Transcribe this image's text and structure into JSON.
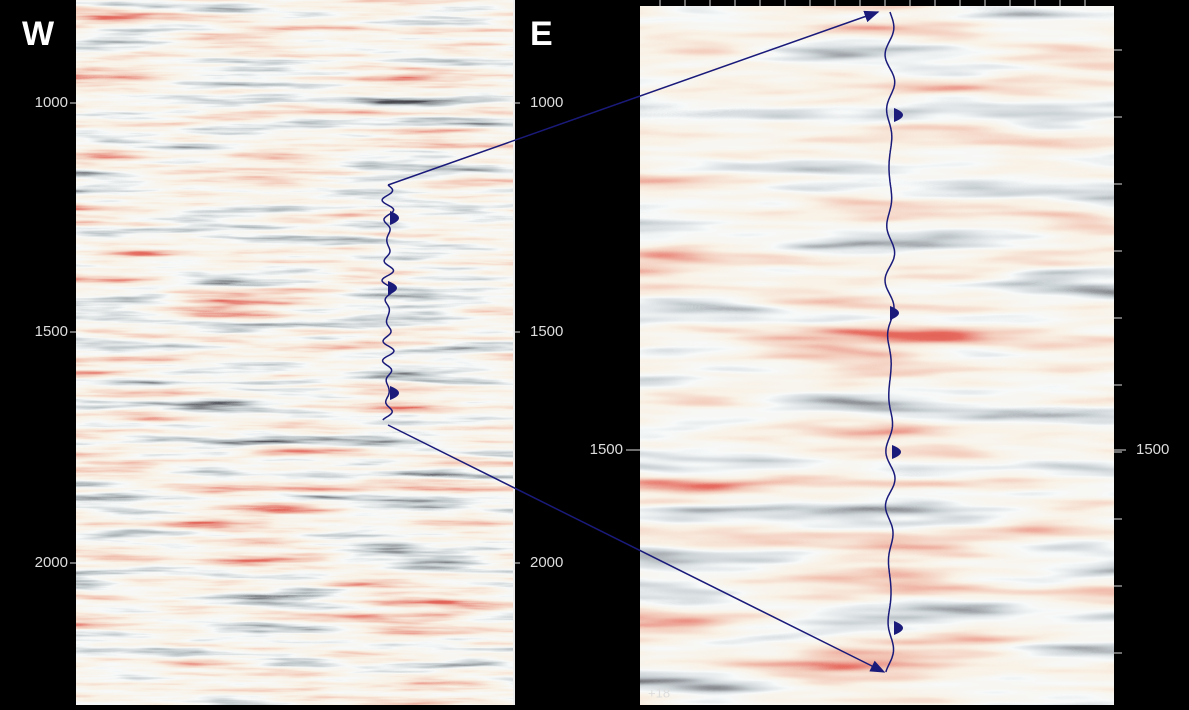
{
  "left_panel": {
    "west_label": "W",
    "east_label": "E",
    "left_ticks": [
      "1000",
      "1500",
      "2000"
    ],
    "right_ticks": [
      "1000",
      "1500",
      "2000"
    ]
  },
  "right_panel": {
    "left_ticks": [
      "1500"
    ],
    "right_ticks": [
      "1500"
    ],
    "corner_label": "+18"
  }
}
